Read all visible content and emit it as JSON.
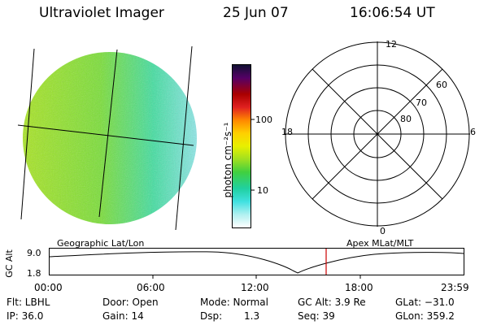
{
  "header": {
    "instrument": "Ultraviolet Imager",
    "date": "25 Jun 07",
    "time": "16:06:54 UT"
  },
  "colorbar": {
    "ticks": [
      "100",
      "10"
    ],
    "label": "photon cm⁻²s⁻¹"
  },
  "polar": {
    "mlt_labels": [
      "12",
      "18",
      "6",
      "0"
    ],
    "lat_labels": [
      "60",
      "70",
      "80"
    ]
  },
  "timeline": {
    "left_title": "Geographic Lat/Lon",
    "right_title": "Apex MLat/MLT",
    "y_label": "GC Alt",
    "y_ticks": [
      "9.0",
      "1.8"
    ],
    "x_ticks": [
      "00:00",
      "06:00",
      "12:00",
      "18:00",
      "23:59"
    ],
    "cursor_color": "#cc0000"
  },
  "info": {
    "flt": "Flt: LBHL",
    "ip": "IP: 36.0",
    "door": "Door: Open",
    "gain": "Gain: 14",
    "mode": "Mode: Normal",
    "dsp_label": "Dsp:",
    "dsp_value": "1.3",
    "gcalt": "GC Alt: 3.9 Re",
    "seq": "Seq: 39",
    "glat": "GLat: −31.0",
    "glon": "GLon: 359.2"
  }
}
